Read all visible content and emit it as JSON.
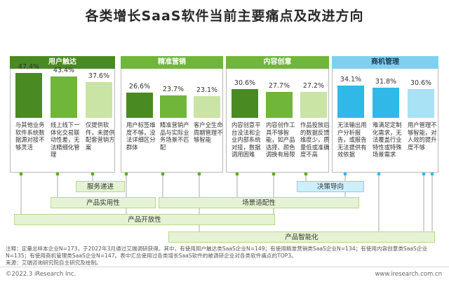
{
  "title": "各类增长SaaS软件当前主要痛点及改进方向",
  "colors": {
    "dark_green": "#4a8a22",
    "mid_green": "#6fb63a",
    "light_green": "#c9e4a5",
    "blue_header": "#7fd0ee",
    "blue_bar": "#2fb8e8",
    "blue_bar_light": "#a9e1f5"
  },
  "chart_data": {
    "type": "bar",
    "groups": [
      {
        "name": "用户触达",
        "items": [
          {
            "label": "47.4%",
            "value": 47.4,
            "desc": "与其他业务软件系统数据源对接不够灵活"
          },
          {
            "label": "43.4%",
            "value": 43.4,
            "desc": "线上线下一体化交易联动性差，无法精细化管理"
          },
          {
            "label": "37.6%",
            "value": 37.6,
            "desc": "仅提供软件，未提供配套营销方案"
          }
        ]
      },
      {
        "name": "精准营销",
        "items": [
          {
            "label": "26.6%",
            "value": 26.6,
            "desc": "用户标签维度不够，没法详细区分群体"
          },
          {
            "label": "23.7%",
            "value": 23.7,
            "desc": "精准营销产品与实际业务场景不匹配"
          },
          {
            "label": "23.1%",
            "value": 23.1,
            "desc": "客户全生命周期管理不够智能"
          }
        ]
      },
      {
        "name": "内容创意",
        "items": [
          {
            "label": "30.6%",
            "value": 30.6,
            "desc": "内容创意平台没法和企业内部系统对接，数据调用困难"
          },
          {
            "label": "27.7%",
            "value": 27.7,
            "desc": "内容创作工具不够智能，如产品选择、颜色调换有局限"
          },
          {
            "label": "27.2%",
            "value": 27.2,
            "desc": "作品投放后的数据反馈维度少，质量低或准确度不高"
          }
        ]
      },
      {
        "name": "商机管理",
        "items": [
          {
            "label": "34.1%",
            "value": 34.1,
            "desc": "无法输出用户分析报告，或报告无法提供有效依据"
          },
          {
            "label": "31.8%",
            "value": 31.8,
            "desc": "难满足定制化需求，无法覆盖行业特性或特殊场景需求"
          },
          {
            "label": "30.6%",
            "value": 30.6,
            "desc": "用户管理不够智能，对人效的提升度不够"
          }
        ]
      }
    ],
    "directions": [
      "服务递进",
      "决策导向",
      "产品实用性",
      "场景适配性",
      "产品开放性",
      "产品智能化"
    ],
    "ylim": [
      0,
      50
    ]
  },
  "note_lines": [
    "注释：定量总样本企业N=173，于2022年3月通过艾瑞调研获得。其中，有使用用户触达类SaaS企业N=149；有使用精准营销类SaaS企业N=134；有使用内容创意类SaaS企业",
    "N=135；有使用商机管理类SaaS企业N=147。表中汇总使用过各类增长SaaS软件的被调研企业对各类软件痛点的TOP3。",
    "来源：艾瑞咨询研究院自主研究及绘制。"
  ],
  "footer": {
    "left": "©2022.3 iResearch Inc.",
    "right": "www.iresearch.com.cn"
  }
}
